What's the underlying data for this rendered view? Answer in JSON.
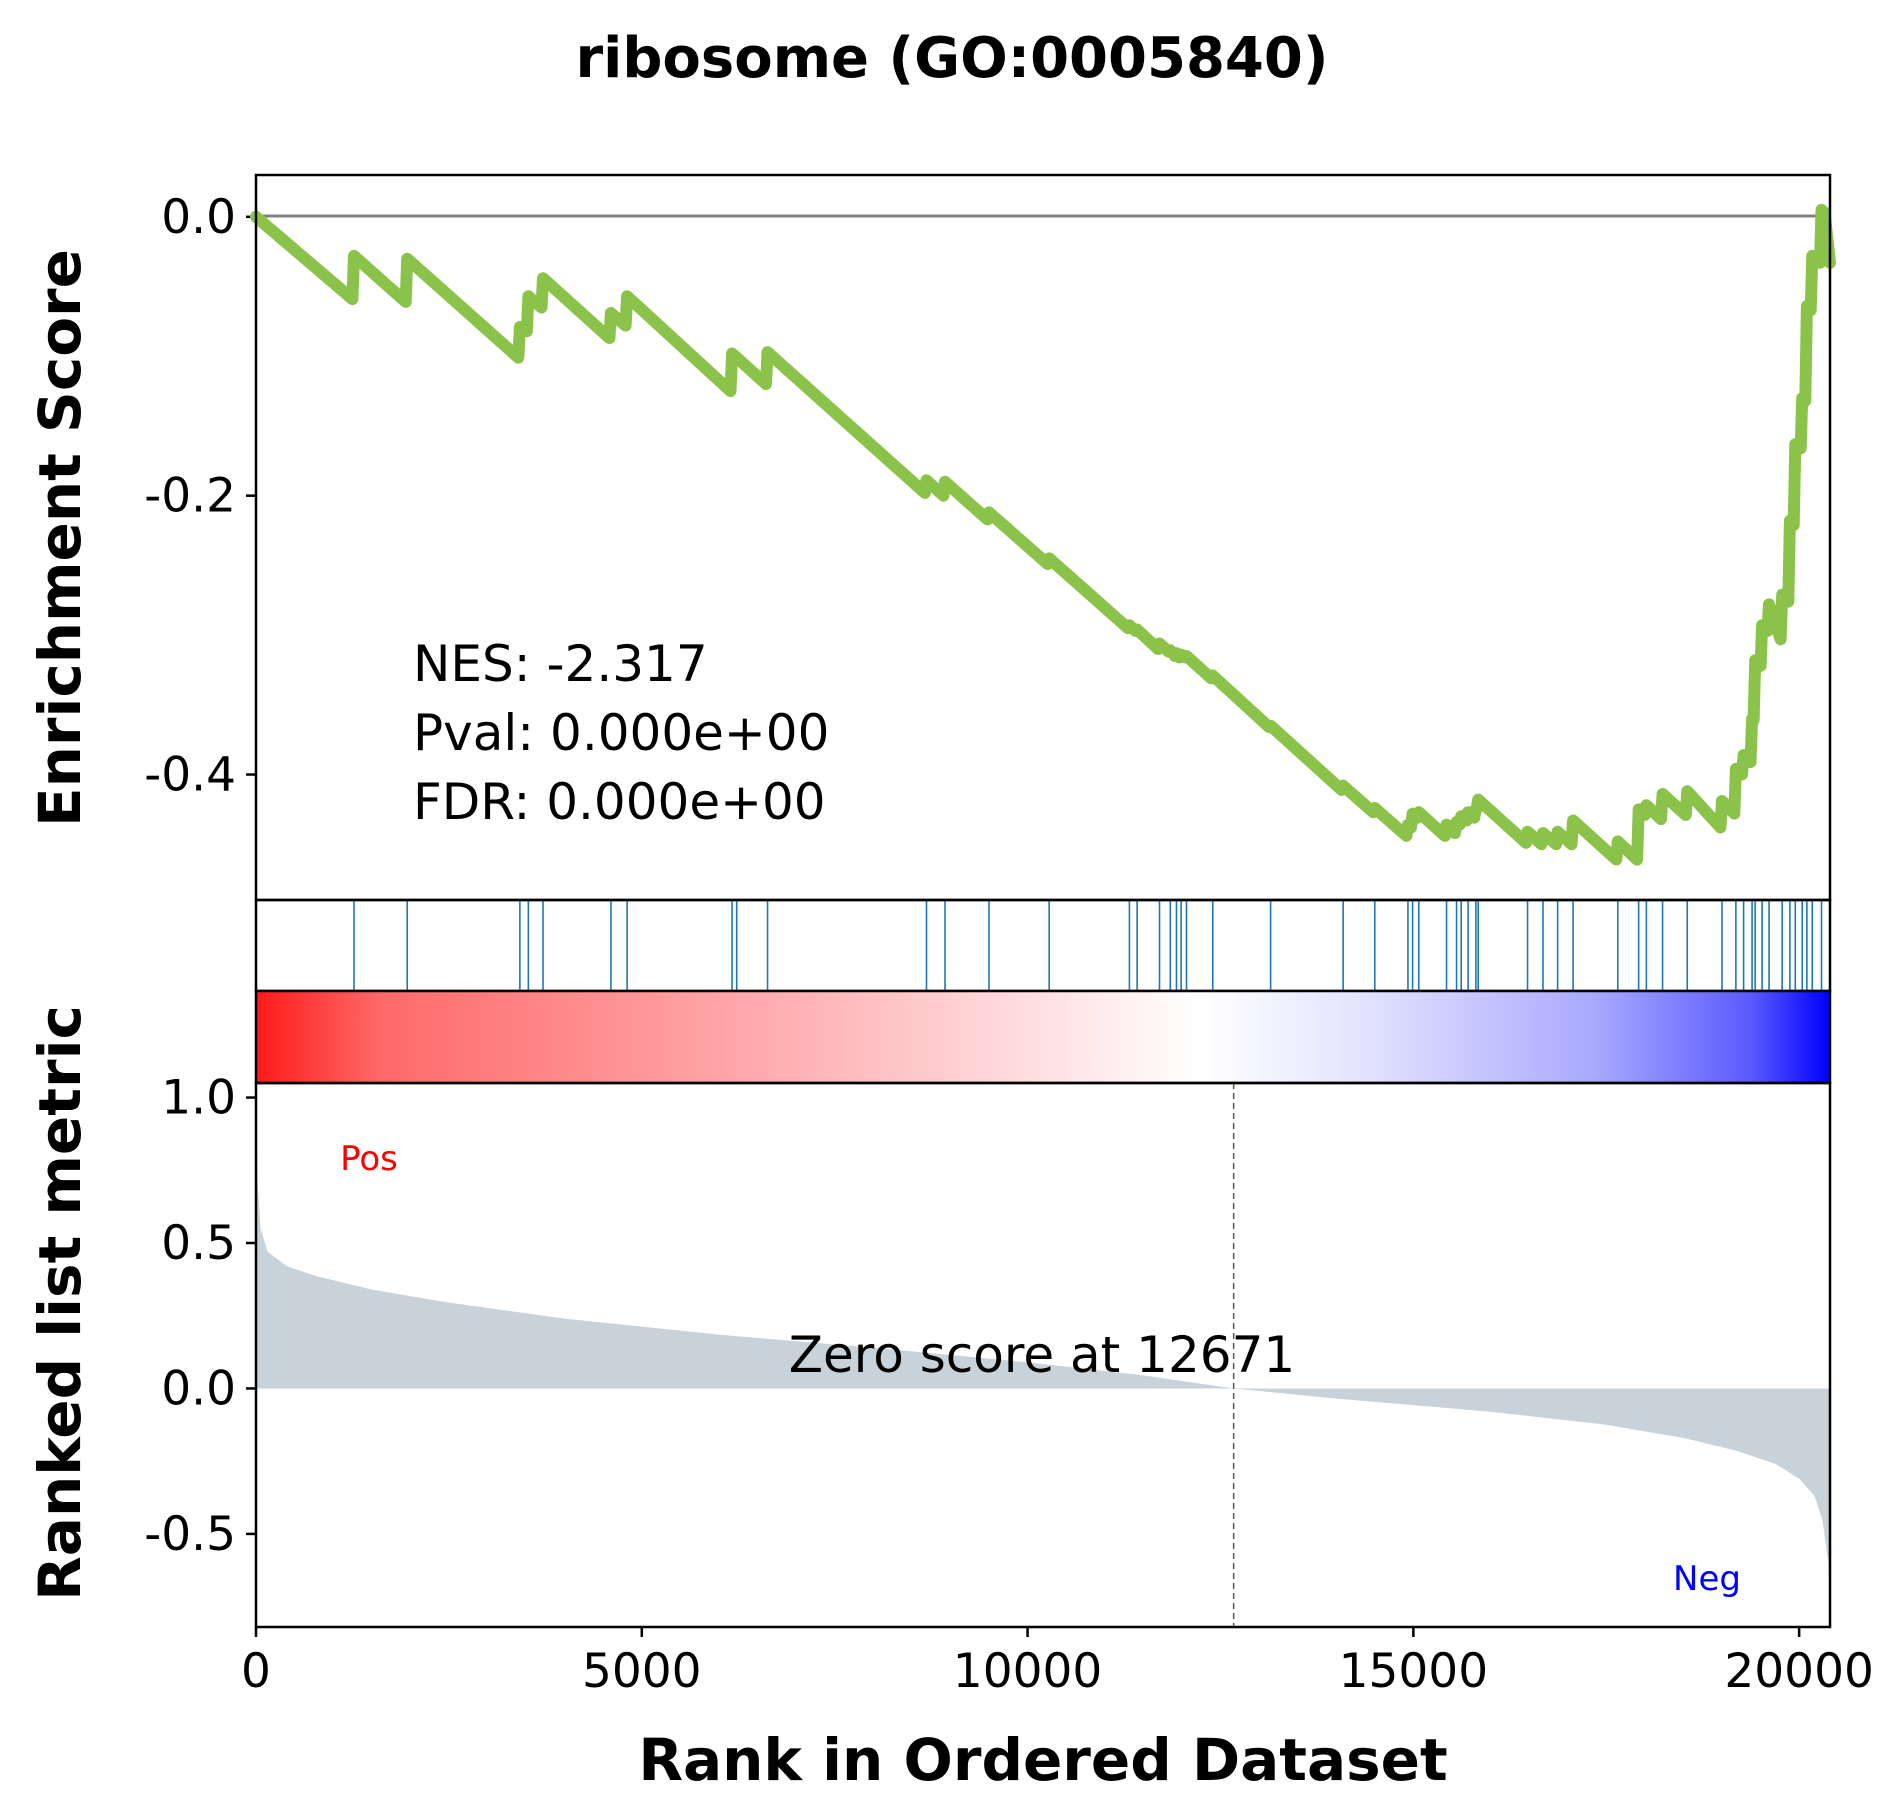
{
  "chart_data": {
    "type": "line",
    "title": "ribosome (GO:0005840)",
    "xlabel": "Rank in Ordered Dataset",
    "es_ylabel": "Enrichment Score",
    "metric_ylabel": "Ranked list metric",
    "xlim": [
      0,
      20400
    ],
    "x_ticks": [
      "0",
      "5000",
      "10000",
      "15000",
      "20000"
    ],
    "x_tick_values": [
      0,
      5000,
      10000,
      15000,
      20000
    ],
    "es_ylim": [
      -0.49,
      0.03
    ],
    "es_ticks": [
      "0.0",
      "-0.2",
      "-0.4"
    ],
    "es_tick_values": [
      0.0,
      -0.2,
      -0.4
    ],
    "metric_ylim": [
      -0.82,
      1.05
    ],
    "metric_ticks": [
      "1.0",
      "0.5",
      "0.0",
      "-0.5"
    ],
    "metric_tick_values": [
      1.0,
      0.5,
      0.0,
      -0.5
    ],
    "stats": {
      "nes": "NES: -2.317",
      "pval": "Pval: 0.000e+00",
      "fdr": "FDR: 0.000e+00"
    },
    "zero_score_rank": 12671,
    "zero_score_label": "Zero score at 12671",
    "pos_label": "Pos",
    "neg_label": "Neg",
    "line_color": "#8bc34a",
    "hit_color": "#1f77b4",
    "metric_fill_color": "#c8d2da",
    "hits": [
      1270,
      1960,
      3420,
      3530,
      3720,
      4600,
      4810,
      6170,
      6230,
      6630,
      8690,
      8930,
      9500,
      10280,
      11320,
      11420,
      11710,
      11850,
      11930,
      11990,
      12060,
      12400,
      13150,
      14090,
      14500,
      14930,
      14990,
      15070,
      15430,
      15560,
      15620,
      15710,
      15810,
      15840,
      16480,
      16680,
      16870,
      17070,
      17650,
      17920,
      18020,
      18230,
      18550,
      19000,
      19180,
      19280,
      19390,
      19430,
      19520,
      19610,
      19780,
      19880,
      19950,
      20040,
      20100,
      20170,
      20290
    ],
    "es_curve": [
      [
        0,
        0.0
      ],
      [
        1250,
        -0.059
      ],
      [
        1270,
        -0.028
      ],
      [
        1940,
        -0.061
      ],
      [
        1960,
        -0.03
      ],
      [
        3400,
        -0.101
      ],
      [
        3420,
        -0.079
      ],
      [
        3510,
        -0.082
      ],
      [
        3530,
        -0.057
      ],
      [
        3700,
        -0.065
      ],
      [
        3720,
        -0.044
      ],
      [
        4580,
        -0.087
      ],
      [
        4600,
        -0.069
      ],
      [
        4790,
        -0.078
      ],
      [
        4810,
        -0.057
      ],
      [
        6150,
        -0.125
      ],
      [
        6170,
        -0.098
      ],
      [
        6210,
        -0.1
      ],
      [
        6230,
        -0.101
      ],
      [
        6610,
        -0.12
      ],
      [
        6630,
        -0.097
      ],
      [
        8670,
        -0.198
      ],
      [
        8690,
        -0.189
      ],
      [
        8910,
        -0.2
      ],
      [
        8930,
        -0.19
      ],
      [
        9480,
        -0.217
      ],
      [
        9500,
        -0.212
      ],
      [
        10260,
        -0.249
      ],
      [
        10280,
        -0.245
      ],
      [
        11300,
        -0.295
      ],
      [
        11320,
        -0.293
      ],
      [
        11400,
        -0.297
      ],
      [
        11420,
        -0.296
      ],
      [
        11690,
        -0.31
      ],
      [
        11710,
        -0.306
      ],
      [
        11830,
        -0.312
      ],
      [
        11850,
        -0.311
      ],
      [
        11910,
        -0.315
      ],
      [
        11930,
        -0.313
      ],
      [
        11970,
        -0.316
      ],
      [
        11990,
        -0.314
      ],
      [
        12040,
        -0.316
      ],
      [
        12060,
        -0.315
      ],
      [
        12380,
        -0.331
      ],
      [
        12400,
        -0.329
      ],
      [
        13130,
        -0.366
      ],
      [
        13150,
        -0.365
      ],
      [
        14070,
        -0.411
      ],
      [
        14090,
        -0.408
      ],
      [
        14480,
        -0.427
      ],
      [
        14500,
        -0.424
      ],
      [
        14910,
        -0.444
      ],
      [
        14930,
        -0.436
      ],
      [
        14970,
        -0.438
      ],
      [
        14990,
        -0.428
      ],
      [
        15050,
        -0.431
      ],
      [
        15070,
        -0.427
      ],
      [
        15410,
        -0.444
      ],
      [
        15430,
        -0.436
      ],
      [
        15540,
        -0.442
      ],
      [
        15560,
        -0.434
      ],
      [
        15600,
        -0.436
      ],
      [
        15620,
        -0.43
      ],
      [
        15690,
        -0.433
      ],
      [
        15710,
        -0.427
      ],
      [
        15790,
        -0.431
      ],
      [
        15810,
        -0.425
      ],
      [
        15820,
        -0.425
      ],
      [
        15840,
        -0.418
      ],
      [
        16460,
        -0.449
      ],
      [
        16480,
        -0.441
      ],
      [
        16660,
        -0.45
      ],
      [
        16680,
        -0.442
      ],
      [
        16850,
        -0.45
      ],
      [
        16870,
        -0.441
      ],
      [
        17050,
        -0.45
      ],
      [
        17070,
        -0.433
      ],
      [
        17630,
        -0.461
      ],
      [
        17650,
        -0.448
      ],
      [
        17900,
        -0.461
      ],
      [
        17920,
        -0.425
      ],
      [
        18000,
        -0.429
      ],
      [
        18020,
        -0.422
      ],
      [
        18210,
        -0.432
      ],
      [
        18230,
        -0.414
      ],
      [
        18530,
        -0.429
      ],
      [
        18550,
        -0.412
      ],
      [
        18980,
        -0.438
      ],
      [
        19000,
        -0.419
      ],
      [
        19160,
        -0.428
      ],
      [
        19180,
        -0.396
      ],
      [
        19260,
        -0.4
      ],
      [
        19280,
        -0.386
      ],
      [
        19370,
        -0.391
      ],
      [
        19390,
        -0.36
      ],
      [
        19410,
        -0.361
      ],
      [
        19430,
        -0.318
      ],
      [
        19500,
        -0.322
      ],
      [
        19520,
        -0.293
      ],
      [
        19590,
        -0.297
      ],
      [
        19610,
        -0.278
      ],
      [
        19760,
        -0.303
      ],
      [
        19780,
        -0.271
      ],
      [
        19860,
        -0.276
      ],
      [
        19880,
        -0.218
      ],
      [
        19930,
        -0.221
      ],
      [
        19950,
        -0.163
      ],
      [
        20020,
        -0.166
      ],
      [
        20040,
        -0.13
      ],
      [
        20080,
        -0.132
      ],
      [
        20100,
        -0.064
      ],
      [
        20150,
        -0.067
      ],
      [
        20170,
        -0.028
      ],
      [
        20270,
        -0.033
      ],
      [
        20290,
        0.005
      ],
      [
        20330,
        0.003
      ],
      [
        20400,
        -0.033
      ]
    ],
    "metric_curve": [
      [
        0,
        1.0
      ],
      [
        20,
        0.72
      ],
      [
        60,
        0.55
      ],
      [
        150,
        0.47
      ],
      [
        400,
        0.42
      ],
      [
        800,
        0.385
      ],
      [
        1500,
        0.34
      ],
      [
        2500,
        0.295
      ],
      [
        4000,
        0.24
      ],
      [
        6000,
        0.185
      ],
      [
        8000,
        0.14
      ],
      [
        10000,
        0.09
      ],
      [
        11500,
        0.045
      ],
      [
        12671,
        0.0
      ],
      [
        14000,
        -0.035
      ],
      [
        16000,
        -0.08
      ],
      [
        17500,
        -0.125
      ],
      [
        18500,
        -0.17
      ],
      [
        19200,
        -0.215
      ],
      [
        19700,
        -0.26
      ],
      [
        20000,
        -0.31
      ],
      [
        20200,
        -0.37
      ],
      [
        20300,
        -0.45
      ],
      [
        20380,
        -0.6
      ],
      [
        20400,
        -0.82
      ]
    ]
  }
}
